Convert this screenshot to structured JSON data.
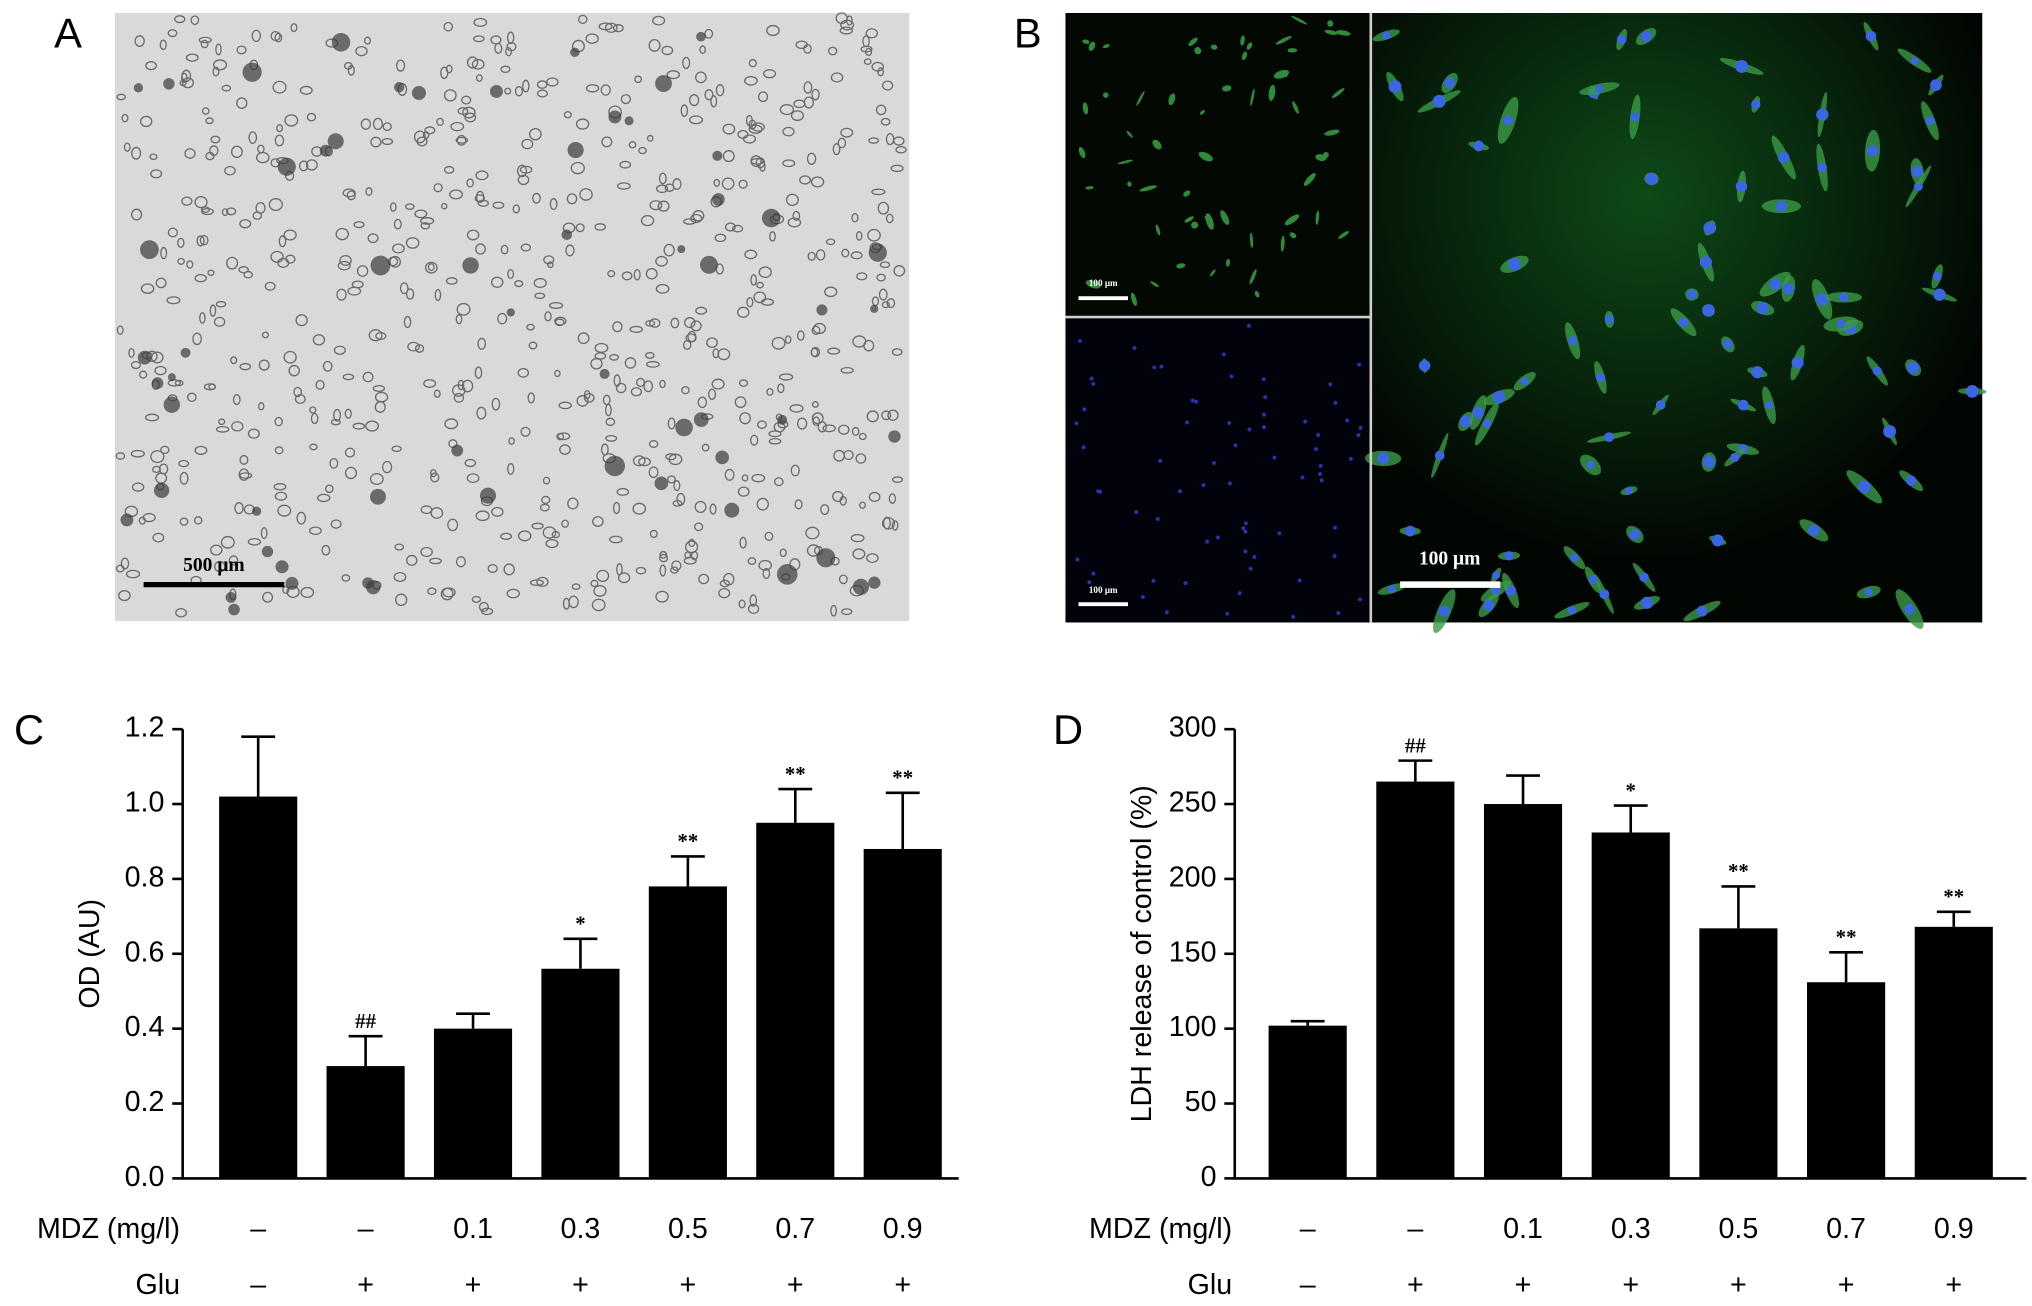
{
  "images": [
    {
      "label": "A",
      "scale_bars": [
        "500 μm"
      ]
    },
    {
      "label": "B",
      "scale_bars": [
        "100 μm",
        "100 μm",
        "100 μm"
      ]
    }
  ],
  "chart_data": [
    {
      "type": "bar",
      "label": "C",
      "ylabel": "OD (AU)",
      "ylim": [
        0,
        1.2
      ],
      "yticks": [
        {
          "value": 0,
          "label": "0.0"
        },
        0.2,
        0.4,
        0.6,
        0.8,
        {
          "value": 1,
          "label": "1.0"
        },
        1.2
      ],
      "category_rows": [
        {
          "name": "MDZ (mg/l)",
          "labels": [
            "–",
            "–",
            "0.1",
            "0.3",
            "0.5",
            "0.7",
            "0.9"
          ]
        },
        {
          "name": "Glu",
          "labels": [
            "–",
            "+",
            "+",
            "+",
            "+",
            "+",
            "+"
          ]
        }
      ],
      "series": [
        {
          "color": "#000000",
          "values": [
            1.02,
            0.3,
            0.4,
            0.56,
            0.78,
            0.95,
            0.88
          ],
          "errors": [
            0.16,
            0.08,
            0.04,
            0.08,
            0.08,
            0.09,
            0.15
          ],
          "annotations": [
            null,
            "##",
            null,
            "*",
            "**",
            "**",
            "**"
          ]
        }
      ]
    },
    {
      "type": "bar",
      "label": "D",
      "ylabel": "LDH release of control (%)",
      "ylim": [
        0,
        300
      ],
      "yticks": [
        0,
        50,
        100,
        150,
        200,
        250,
        300
      ],
      "category_rows": [
        {
          "name": "MDZ (mg/l)",
          "labels": [
            "–",
            "–",
            "0.1",
            "0.3",
            "0.5",
            "0.7",
            "0.9"
          ]
        },
        {
          "name": "Glu",
          "labels": [
            "–",
            "+",
            "+",
            "+",
            "+",
            "+",
            "+"
          ]
        }
      ],
      "series": [
        {
          "color": "#000000",
          "values": [
            102,
            265,
            250,
            231,
            167,
            131,
            168
          ],
          "errors": [
            3,
            14,
            19,
            18,
            28,
            20,
            10
          ],
          "annotations": [
            null,
            "##",
            null,
            "*",
            "**",
            "**",
            "**"
          ]
        }
      ]
    }
  ]
}
